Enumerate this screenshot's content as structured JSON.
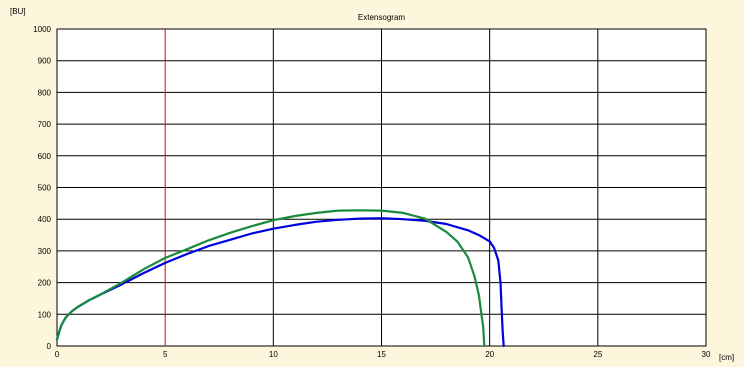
{
  "chart_data": {
    "type": "line",
    "title": "Extensogram",
    "ylabel": "[BU]",
    "xlabel": "[cm]",
    "xlim": [
      0,
      30
    ],
    "ylim": [
      0,
      1000
    ],
    "x_ticks": [
      0,
      5,
      10,
      15,
      20,
      25,
      30
    ],
    "y_ticks": [
      0,
      100,
      200,
      300,
      400,
      500,
      600,
      700,
      800,
      900,
      1000
    ],
    "grid": true,
    "marker_x": 5,
    "series": [
      {
        "color": "#0000dd",
        "x": [
          0,
          0.1,
          0.2,
          0.4,
          0.7,
          1,
          1.5,
          2,
          3,
          4,
          5,
          6,
          7,
          8,
          9,
          10,
          11,
          12,
          13,
          14,
          15,
          16,
          17,
          18,
          19,
          19.5,
          20,
          20.2,
          20.4,
          20.5,
          20.55,
          20.6,
          20.65
        ],
        "y": [
          20,
          45,
          65,
          90,
          110,
          125,
          145,
          162,
          195,
          230,
          262,
          290,
          315,
          335,
          355,
          370,
          382,
          392,
          398,
          402,
          403,
          400,
          395,
          385,
          365,
          350,
          330,
          310,
          270,
          200,
          120,
          50,
          0
        ]
      },
      {
        "color": "#1a8a3c",
        "x": [
          0,
          0.1,
          0.2,
          0.4,
          0.7,
          1,
          1.5,
          2,
          3,
          4,
          5,
          6,
          7,
          8,
          9,
          10,
          11,
          12,
          13,
          14,
          15,
          16,
          17,
          18,
          18.5,
          19,
          19.3,
          19.5,
          19.6,
          19.7,
          19.75
        ],
        "y": [
          20,
          45,
          65,
          90,
          110,
          125,
          145,
          162,
          200,
          242,
          278,
          305,
          333,
          357,
          378,
          397,
          410,
          420,
          427,
          428,
          427,
          420,
          402,
          360,
          330,
          280,
          220,
          160,
          110,
          60,
          0
        ]
      }
    ]
  }
}
